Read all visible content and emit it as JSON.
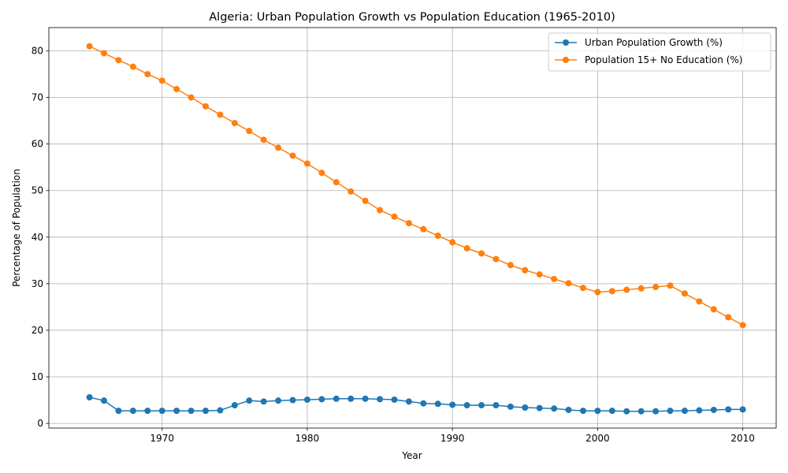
{
  "chart_data": {
    "type": "line",
    "title": "Algeria: Urban Population Growth vs Population Education (1965-2010)",
    "xlabel": "Year",
    "ylabel": "Percentage of Population",
    "xlim": [
      1962.2,
      2012.3
    ],
    "ylim": [
      -1.0,
      85.0
    ],
    "xticks": [
      1970,
      1980,
      1990,
      2000,
      2010
    ],
    "yticks": [
      0,
      10,
      20,
      30,
      40,
      50,
      60,
      70,
      80
    ],
    "grid": true,
    "legend_position": "top-right",
    "x": [
      1965,
      1966,
      1967,
      1968,
      1969,
      1970,
      1971,
      1972,
      1973,
      1974,
      1975,
      1976,
      1977,
      1978,
      1979,
      1980,
      1981,
      1982,
      1983,
      1984,
      1985,
      1986,
      1987,
      1988,
      1989,
      1990,
      1991,
      1992,
      1993,
      1994,
      1995,
      1996,
      1997,
      1998,
      1999,
      2000,
      2001,
      2002,
      2003,
      2004,
      2005,
      2006,
      2007,
      2008,
      2009,
      2010
    ],
    "series": [
      {
        "name": "Urban Population Growth (%)",
        "color": "#1f77b4",
        "values": [
          5.6,
          4.9,
          2.7,
          2.7,
          2.7,
          2.7,
          2.7,
          2.7,
          2.7,
          2.8,
          3.9,
          4.9,
          4.7,
          4.9,
          5.0,
          5.1,
          5.2,
          5.3,
          5.3,
          5.3,
          5.2,
          5.1,
          4.7,
          4.3,
          4.2,
          4.0,
          3.9,
          3.9,
          3.9,
          3.6,
          3.4,
          3.3,
          3.2,
          2.9,
          2.7,
          2.7,
          2.7,
          2.6,
          2.6,
          2.6,
          2.7,
          2.7,
          2.8,
          2.9,
          3.0,
          3.0
        ]
      },
      {
        "name": "Population 15+ No Education (%)",
        "color": "#ff7f0e",
        "values": [
          81.0,
          79.5,
          78.0,
          76.6,
          75.0,
          73.6,
          71.8,
          70.0,
          68.1,
          66.3,
          64.5,
          62.8,
          60.9,
          59.2,
          57.5,
          55.8,
          53.8,
          51.8,
          49.8,
          47.8,
          45.8,
          44.4,
          43.0,
          41.7,
          40.3,
          38.9,
          37.6,
          36.5,
          35.3,
          34.0,
          32.9,
          32.0,
          31.0,
          30.1,
          29.1,
          28.2,
          28.4,
          28.7,
          29.0,
          29.3,
          29.6,
          27.9,
          26.2,
          24.5,
          22.8,
          21.1
        ]
      }
    ]
  }
}
